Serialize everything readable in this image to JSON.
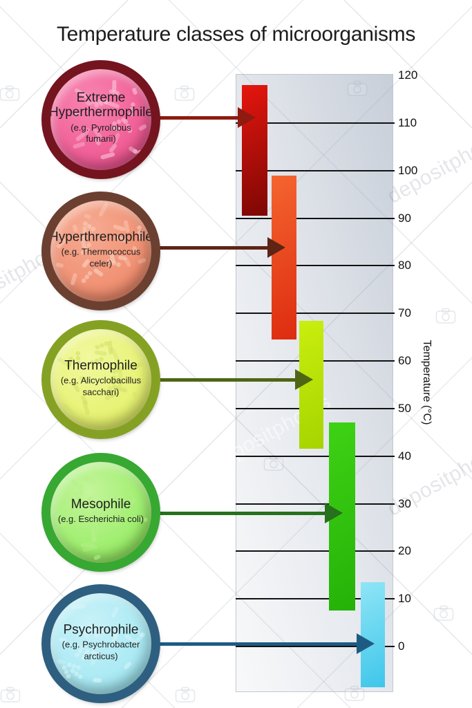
{
  "title": "Temperature classes of microorganisms",
  "watermark": {
    "text": "depositphotos"
  },
  "axis": {
    "label": "Temperature (°C)",
    "ticks": [
      0,
      10,
      20,
      30,
      40,
      50,
      60,
      70,
      80,
      90,
      100,
      110,
      120
    ]
  },
  "chart_data": {
    "type": "bar",
    "subtype": "vertical-range-bars",
    "title": "Temperature classes of microorganisms",
    "xlabel": "",
    "ylabel": "Temperature (°C)",
    "yticks": [
      0,
      10,
      20,
      30,
      40,
      50,
      60,
      70,
      80,
      90,
      100,
      110,
      120
    ],
    "ylim": [
      -9.2,
      120.3
    ],
    "grid": true,
    "legend_position": "none",
    "series": [
      {
        "label": "Extreme Hyperthermophile",
        "example": "(e.g. Pyrolobus fumarii)",
        "range_c": [
          90.5,
          118
        ],
        "colors": {
          "bar": [
            "#e5160e",
            "#7d0704"
          ],
          "arrow": "#8f1a10",
          "ring": "#74141f",
          "fill": [
            "#f884b0",
            "#ee5490"
          ],
          "rod": "#fbc3d6"
        }
      },
      {
        "label": "Hyperthremophile",
        "example": "(e.g. Thermococcus celer)",
        "range_c": [
          64.5,
          99
        ],
        "colors": {
          "bar": [
            "#f4652f",
            "#dd2c10"
          ],
          "arrow": "#5e2415",
          "ring": "#6b4030",
          "fill": [
            "#f6ab92",
            "#ef8a6b"
          ],
          "rod": "#fad4c4"
        }
      },
      {
        "label": "Thermophile",
        "example": "(e.g. Alicyclobacillus sacchari)",
        "range_c": [
          41.5,
          68.5
        ],
        "colors": {
          "bar": [
            "#c9ee0e",
            "#a6d400"
          ],
          "arrow": "#4e6614",
          "ring": "#85a124",
          "fill": [
            "#f1f89e",
            "#e4f169"
          ],
          "rod": "#cfdf68"
        }
      },
      {
        "label": "Mesophile",
        "example": "(e.g. Escherichia coli)",
        "range_c": [
          7.5,
          47
        ],
        "colors": {
          "bar": [
            "#3ed214",
            "#25b208"
          ],
          "arrow": "#27701c",
          "ring": "#37a832",
          "fill": [
            "#c4f59b",
            "#94ec62"
          ],
          "rod": "#b5ef8a"
        }
      },
      {
        "label": "Psychrophile",
        "example": "(e.g. Psychrobacter arcticus)",
        "range_c": [
          -8.5,
          13.5
        ],
        "colors": {
          "bar": [
            "#8fe5f6",
            "#3fc6ea"
          ],
          "arrow": "#1e5b82",
          "ring": "#2e5f80",
          "fill": [
            "#c8f1f8",
            "#a2e8f3"
          ],
          "rod": "#d9f5fa"
        }
      }
    ]
  }
}
